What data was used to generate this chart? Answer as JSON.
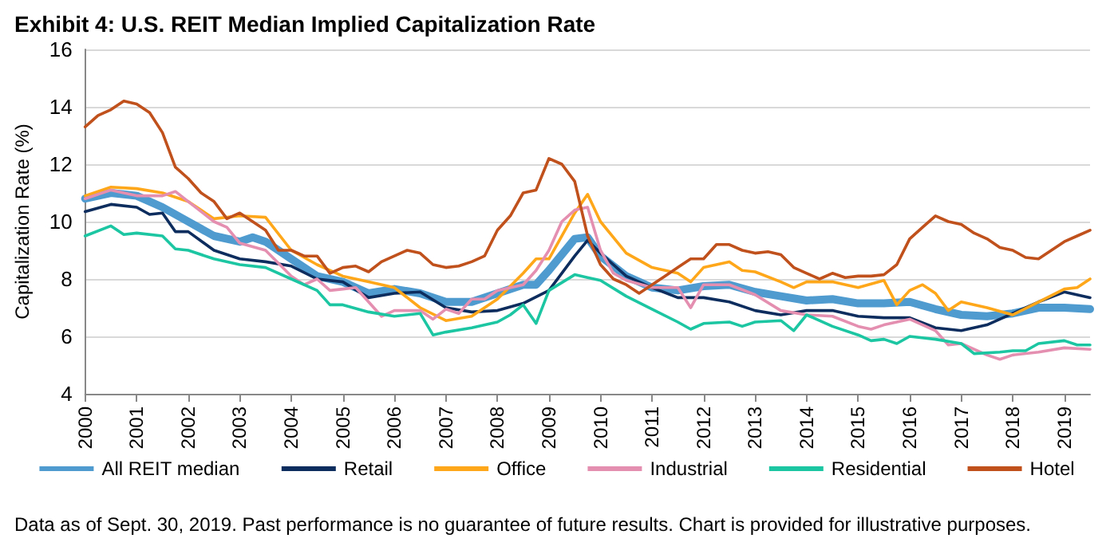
{
  "chart_data": {
    "type": "line",
    "title": "Exhibit 4: U.S. REIT Median Implied Capitalization Rate",
    "ylabel": "Capitalization Rate (%)",
    "annotations": [
      "Data as of Sept. 30, 2019. Past performance is no guarantee of future results. Chart is provided for illustrative purposes."
    ],
    "xlim": [
      2000,
      2019.5
    ],
    "xticks": [
      2000,
      2001,
      2002,
      2003,
      2004,
      2005,
      2006,
      2007,
      2008,
      2009,
      2010,
      2011,
      2012,
      2013,
      2014,
      2015,
      2016,
      2017,
      2018,
      2019
    ],
    "ylim": [
      4,
      16
    ],
    "yticks": [
      4,
      6,
      8,
      10,
      12,
      14,
      16
    ],
    "grid": "y",
    "legend": "bottom",
    "marker": "none",
    "line_style": "solid",
    "series": [
      {
        "name": "All REIT median",
        "color": "#4f9bd0",
        "x": [
          2000,
          2000.5,
          2001,
          2001.5,
          2002,
          2002.5,
          2003,
          2003.25,
          2003.5,
          2004,
          2004.5,
          2005,
          2005.5,
          2006,
          2006.5,
          2007,
          2007.5,
          2008,
          2008.5,
          2008.75,
          2009,
          2009.5,
          2009.75,
          2010,
          2010.5,
          2011,
          2011.5,
          2012,
          2012.5,
          2013,
          2013.5,
          2014,
          2014.5,
          2015,
          2015.5,
          2016,
          2016.5,
          2017,
          2017.5,
          2018,
          2018.5,
          2019,
          2019.5
        ],
        "values": [
          10.8,
          11.0,
          10.9,
          10.5,
          10.0,
          9.5,
          9.3,
          9.45,
          9.3,
          8.7,
          8.1,
          7.9,
          7.5,
          7.65,
          7.5,
          7.2,
          7.2,
          7.5,
          7.8,
          7.8,
          8.3,
          9.4,
          9.45,
          8.8,
          8.1,
          7.7,
          7.6,
          7.75,
          7.8,
          7.55,
          7.4,
          7.25,
          7.3,
          7.15,
          7.15,
          7.2,
          6.95,
          6.75,
          6.7,
          6.8,
          7.0,
          7.0,
          6.95
        ]
      },
      {
        "name": "Retail",
        "color": "#0c2d5e",
        "x": [
          2000,
          2000.5,
          2001,
          2001.25,
          2001.5,
          2001.75,
          2002,
          2002.5,
          2003,
          2003.5,
          2004,
          2004.5,
          2005,
          2005.5,
          2006,
          2006.5,
          2007,
          2007.5,
          2008,
          2008.5,
          2009,
          2009.5,
          2009.75,
          2010,
          2010.5,
          2011,
          2011.5,
          2012,
          2012.5,
          2013,
          2013.5,
          2014,
          2014.5,
          2015,
          2015.5,
          2016,
          2016.5,
          2017,
          2017.5,
          2018,
          2018.5,
          2019,
          2019.5
        ],
        "values": [
          10.35,
          10.6,
          10.5,
          10.25,
          10.3,
          9.65,
          9.65,
          9.0,
          8.7,
          8.6,
          8.45,
          8.0,
          7.9,
          7.35,
          7.5,
          7.55,
          7.0,
          6.85,
          6.9,
          7.15,
          7.6,
          8.8,
          9.35,
          8.9,
          8.1,
          7.7,
          7.35,
          7.35,
          7.2,
          6.9,
          6.75,
          6.9,
          6.9,
          6.7,
          6.65,
          6.65,
          6.3,
          6.2,
          6.4,
          6.8,
          7.2,
          7.55,
          7.35
        ]
      },
      {
        "name": "Office",
        "color": "#ffa71a",
        "x": [
          2000,
          2000.5,
          2001,
          2001.5,
          2002,
          2002.5,
          2003,
          2003.5,
          2004,
          2004.5,
          2005,
          2005.5,
          2006,
          2006.5,
          2007,
          2007.5,
          2008,
          2008.5,
          2008.75,
          2009,
          2009.5,
          2009.75,
          2010,
          2010.5,
          2011,
          2011.5,
          2011.75,
          2012,
          2012.5,
          2012.75,
          2013,
          2013.5,
          2013.75,
          2014,
          2014.5,
          2015,
          2015.5,
          2015.75,
          2016,
          2016.25,
          2016.5,
          2016.75,
          2017,
          2017.5,
          2018,
          2018.5,
          2019,
          2019.25,
          2019.5
        ],
        "values": [
          10.9,
          11.2,
          11.15,
          11.0,
          10.7,
          10.1,
          10.2,
          10.15,
          9.0,
          8.5,
          8.1,
          7.9,
          7.7,
          7.0,
          6.55,
          6.7,
          7.3,
          8.2,
          8.7,
          8.7,
          10.3,
          10.95,
          10.0,
          8.9,
          8.4,
          8.2,
          7.9,
          8.4,
          8.6,
          8.3,
          8.25,
          7.9,
          7.7,
          7.9,
          7.9,
          7.7,
          7.95,
          7.1,
          7.6,
          7.8,
          7.5,
          6.9,
          7.2,
          7.0,
          6.75,
          7.2,
          7.65,
          7.7,
          8.0
        ]
      },
      {
        "name": "Industrial",
        "color": "#e58fb0",
        "x": [
          2000,
          2000.5,
          2001,
          2001.5,
          2001.75,
          2002,
          2002.5,
          2002.75,
          2003,
          2003.5,
          2004,
          2004.25,
          2004.5,
          2004.75,
          2005,
          2005.25,
          2005.5,
          2005.75,
          2006,
          2006.5,
          2006.75,
          2007,
          2007.25,
          2007.5,
          2007.75,
          2008,
          2008.5,
          2008.75,
          2009,
          2009.25,
          2009.5,
          2009.75,
          2010,
          2010.25,
          2010.5,
          2011,
          2011.5,
          2011.75,
          2012,
          2012.5,
          2013,
          2013.5,
          2014,
          2014.5,
          2015,
          2015.25,
          2015.5,
          2016,
          2016.5,
          2016.75,
          2017,
          2017.5,
          2017.75,
          2018,
          2018.5,
          2019,
          2019.5
        ],
        "values": [
          10.8,
          11.1,
          10.9,
          10.9,
          11.05,
          10.7,
          10.0,
          9.8,
          9.25,
          9.0,
          8.1,
          7.8,
          8.0,
          7.6,
          7.65,
          7.7,
          7.2,
          6.7,
          6.9,
          6.9,
          6.6,
          6.95,
          6.8,
          7.3,
          7.3,
          7.6,
          7.8,
          8.3,
          9.0,
          10.0,
          10.4,
          10.5,
          9.0,
          8.2,
          7.95,
          7.7,
          7.7,
          7.0,
          7.8,
          7.8,
          7.45,
          6.9,
          6.75,
          6.7,
          6.35,
          6.25,
          6.4,
          6.6,
          6.2,
          5.7,
          5.75,
          5.35,
          5.2,
          5.35,
          5.45,
          5.6,
          5.55
        ]
      },
      {
        "name": "Residential",
        "color": "#1cc6a3",
        "x": [
          2000,
          2000.5,
          2000.75,
          2001,
          2001.5,
          2001.75,
          2002,
          2002.5,
          2003,
          2003.5,
          2004,
          2004.5,
          2004.75,
          2005,
          2005.5,
          2006,
          2006.5,
          2006.75,
          2007,
          2007.5,
          2008,
          2008.25,
          2008.5,
          2008.75,
          2009,
          2009.5,
          2009.75,
          2010,
          2010.5,
          2011,
          2011.5,
          2011.75,
          2012,
          2012.5,
          2012.75,
          2013,
          2013.5,
          2013.75,
          2014,
          2014.5,
          2015,
          2015.25,
          2015.5,
          2015.75,
          2016,
          2016.5,
          2017,
          2017.25,
          2017.75,
          2018,
          2018.25,
          2018.5,
          2019,
          2019.25,
          2019.5
        ],
        "values": [
          9.5,
          9.85,
          9.55,
          9.6,
          9.5,
          9.05,
          9.0,
          8.7,
          8.5,
          8.4,
          8.0,
          7.6,
          7.1,
          7.1,
          6.85,
          6.7,
          6.8,
          6.05,
          6.15,
          6.3,
          6.5,
          6.75,
          7.1,
          6.45,
          7.6,
          8.15,
          8.05,
          7.95,
          7.4,
          6.95,
          6.5,
          6.25,
          6.45,
          6.5,
          6.35,
          6.5,
          6.55,
          6.2,
          6.75,
          6.35,
          6.05,
          5.85,
          5.9,
          5.75,
          6.0,
          5.9,
          5.75,
          5.4,
          5.45,
          5.5,
          5.5,
          5.75,
          5.85,
          5.7,
          5.7
        ]
      },
      {
        "name": "Hotel",
        "color": "#c0501c",
        "x": [
          2000,
          2000.25,
          2000.5,
          2000.75,
          2001,
          2001.25,
          2001.5,
          2001.75,
          2002,
          2002.25,
          2002.5,
          2002.75,
          2003,
          2003.25,
          2003.5,
          2003.75,
          2004,
          2004.25,
          2004.5,
          2004.75,
          2005,
          2005.25,
          2005.5,
          2005.75,
          2006,
          2006.25,
          2006.5,
          2006.75,
          2007,
          2007.25,
          2007.5,
          2007.75,
          2008,
          2008.25,
          2008.5,
          2008.75,
          2009,
          2009.25,
          2009.5,
          2009.75,
          2010,
          2010.25,
          2010.5,
          2010.75,
          2011,
          2011.25,
          2011.5,
          2011.75,
          2012,
          2012.25,
          2012.5,
          2012.75,
          2013,
          2013.25,
          2013.5,
          2013.75,
          2014,
          2014.25,
          2014.5,
          2014.75,
          2015,
          2015.25,
          2015.5,
          2015.75,
          2016,
          2016.25,
          2016.5,
          2016.75,
          2017,
          2017.25,
          2017.5,
          2017.75,
          2018,
          2018.25,
          2018.5,
          2018.75,
          2019,
          2019.25,
          2019.5
        ],
        "values": [
          13.3,
          13.7,
          13.9,
          14.2,
          14.1,
          13.8,
          13.1,
          11.9,
          11.5,
          11.0,
          10.7,
          10.1,
          10.3,
          10.0,
          9.7,
          9.0,
          9.0,
          8.8,
          8.8,
          8.2,
          8.4,
          8.45,
          8.25,
          8.6,
          8.8,
          9.0,
          8.9,
          8.5,
          8.4,
          8.45,
          8.6,
          8.8,
          9.7,
          10.2,
          11.0,
          11.1,
          12.2,
          12.0,
          11.4,
          9.5,
          8.5,
          8.0,
          7.8,
          7.5,
          7.8,
          8.1,
          8.4,
          8.7,
          8.7,
          9.2,
          9.2,
          9.0,
          8.9,
          8.95,
          8.85,
          8.4,
          8.2,
          8.0,
          8.2,
          8.05,
          8.1,
          8.1,
          8.15,
          8.5,
          9.4,
          9.8,
          10.2,
          10.0,
          9.9,
          9.6,
          9.4,
          9.1,
          9.0,
          8.75,
          8.7,
          9.0,
          9.3,
          9.5,
          9.7
        ]
      }
    ]
  }
}
